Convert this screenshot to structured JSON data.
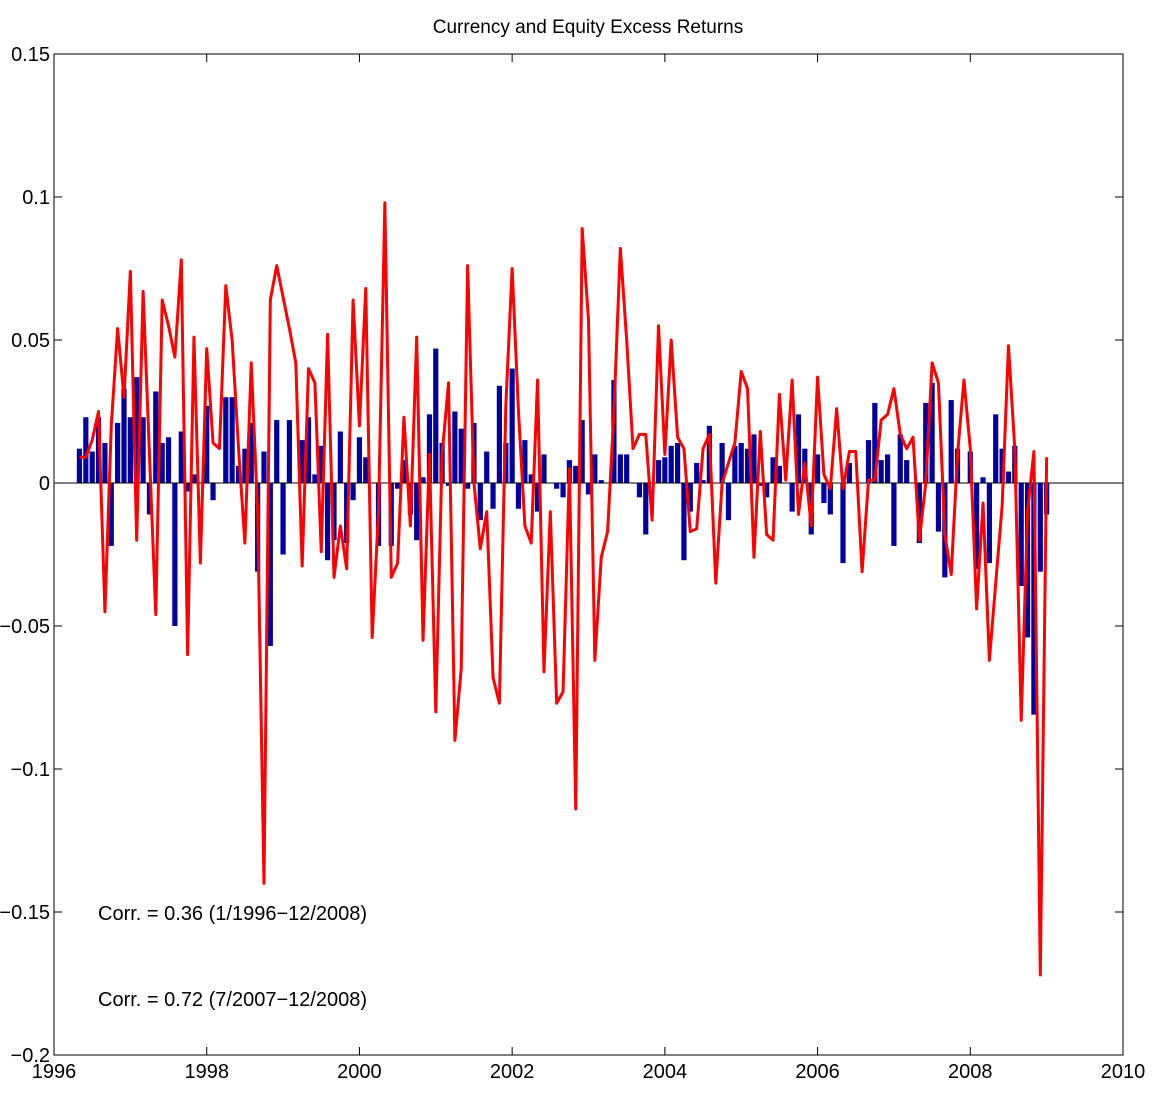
{
  "chart_data": {
    "type": "combo",
    "title": "Currency and Equity Excess Returns",
    "annotations": [
      "Corr. = 0.36 (1/1996−12/2008)",
      "Corr. = 0.72 (7/2007−12/2008)"
    ],
    "xlim": [
      1996,
      2010
    ],
    "xticks": [
      1996,
      1998,
      2000,
      2002,
      2004,
      2006,
      2008,
      2010
    ],
    "ylim": [
      -0.2,
      0.15
    ],
    "yticks": [
      {
        "value": -0.2,
        "label": "−0.2"
      },
      {
        "value": -0.15,
        "label": "−0.15"
      },
      {
        "value": -0.1,
        "label": "−0.1"
      },
      {
        "value": -0.05,
        "label": "−0.05"
      },
      0,
      0.05,
      0.1,
      0.15
    ],
    "x": [
      1996.333,
      1996.417,
      1996.5,
      1996.583,
      1996.667,
      1996.75,
      1996.833,
      1996.917,
      1997,
      1997.083,
      1997.167,
      1997.25,
      1997.333,
      1997.417,
      1997.5,
      1997.583,
      1997.667,
      1997.75,
      1997.833,
      1997.917,
      1998,
      1998.083,
      1998.167,
      1998.25,
      1998.333,
      1998.417,
      1998.5,
      1998.583,
      1998.667,
      1998.75,
      1998.833,
      1998.917,
      1999,
      1999.083,
      1999.167,
      1999.25,
      1999.333,
      1999.417,
      1999.5,
      1999.583,
      1999.667,
      1999.75,
      1999.833,
      1999.917,
      2000,
      2000.083,
      2000.167,
      2000.25,
      2000.333,
      2000.417,
      2000.5,
      2000.583,
      2000.667,
      2000.75,
      2000.833,
      2000.917,
      2001,
      2001.083,
      2001.167,
      2001.25,
      2001.333,
      2001.417,
      2001.5,
      2001.583,
      2001.667,
      2001.75,
      2001.833,
      2001.917,
      2002,
      2002.083,
      2002.167,
      2002.25,
      2002.333,
      2002.417,
      2002.5,
      2002.583,
      2002.667,
      2002.75,
      2002.833,
      2002.917,
      2003,
      2003.083,
      2003.167,
      2003.25,
      2003.333,
      2003.417,
      2003.5,
      2003.583,
      2003.667,
      2003.75,
      2003.833,
      2003.917,
      2004,
      2004.083,
      2004.167,
      2004.25,
      2004.333,
      2004.417,
      2004.5,
      2004.583,
      2004.667,
      2004.75,
      2004.833,
      2004.917,
      2005,
      2005.083,
      2005.167,
      2005.25,
      2005.333,
      2005.417,
      2005.5,
      2005.583,
      2005.667,
      2005.75,
      2005.833,
      2005.917,
      2006,
      2006.083,
      2006.167,
      2006.25,
      2006.333,
      2006.417,
      2006.5,
      2006.583,
      2006.667,
      2006.75,
      2006.833,
      2006.917,
      2007,
      2007.083,
      2007.167,
      2007.25,
      2007.333,
      2007.417,
      2007.5,
      2007.583,
      2007.667,
      2007.75,
      2007.833,
      2007.917,
      2008,
      2008.083,
      2008.167,
      2008.25,
      2008.333,
      2008.417,
      2008.5,
      2008.583,
      2008.667,
      2008.75,
      2008.833,
      2008.917,
      2009
    ],
    "series": [
      {
        "type": "bar",
        "color": "#00009c",
        "values": [
          0.012,
          0.023,
          0.011,
          0.023,
          0.014,
          -0.022,
          0.021,
          0.033,
          0.023,
          0.037,
          0.023,
          -0.011,
          0.032,
          0.014,
          0.016,
          -0.05,
          0.018,
          -0.003,
          0.003,
          0.0,
          0.027,
          -0.006,
          0.0,
          0.03,
          0.03,
          0.006,
          0.012,
          0.021,
          -0.031,
          0.011,
          -0.057,
          0.022,
          -0.025,
          0.022,
          0.0,
          0.015,
          0.023,
          0.003,
          0.013,
          -0.027,
          -0.02,
          0.018,
          -0.021,
          -0.006,
          0.016,
          0.009,
          0.0,
          -0.022,
          0.0,
          -0.022,
          -0.002,
          0.008,
          -0.011,
          -0.02,
          0.002,
          0.024,
          0.047,
          0.014,
          -0.001,
          0.025,
          0.019,
          -0.002,
          0.021,
          -0.013,
          0.011,
          -0.009,
          0.034,
          0.014,
          0.04,
          -0.009,
          0.015,
          0.003,
          -0.01,
          0.01,
          0.0,
          -0.002,
          -0.005,
          0.008,
          0.006,
          0.022,
          -0.004,
          0.01,
          0.001,
          0.0,
          0.036,
          0.01,
          0.01,
          0.0,
          -0.005,
          -0.018,
          0.0,
          0.008,
          0.009,
          0.013,
          0.014,
          -0.027,
          -0.01,
          0.007,
          0.001,
          0.02,
          0.0,
          0.014,
          -0.013,
          0.013,
          0.014,
          0.012,
          0.017,
          -0.001,
          -0.005,
          0.009,
          0.006,
          0.0,
          -0.01,
          0.024,
          0.012,
          -0.018,
          0.01,
          -0.007,
          -0.011,
          0.0,
          -0.028,
          0.007,
          0.0,
          0.0,
          0.015,
          0.028,
          0.008,
          0.01,
          -0.022,
          0.017,
          0.008,
          0.0,
          -0.021,
          0.028,
          0.035,
          -0.017,
          -0.033,
          0.029,
          0.012,
          0.0,
          0.011,
          -0.03,
          0.002,
          -0.028,
          0.024,
          0.012,
          0.004,
          0.013,
          -0.036,
          -0.054,
          -0.081,
          -0.031,
          -0.011
        ]
      },
      {
        "type": "line",
        "color": "#ff0000",
        "values": [
          0.009,
          0.009,
          0.015,
          0.025,
          -0.045,
          0.02,
          0.054,
          0.03,
          0.074,
          -0.02,
          0.067,
          0.01,
          -0.046,
          0.064,
          0.055,
          0.044,
          0.078,
          -0.06,
          0.051,
          -0.028,
          0.047,
          0.014,
          0.012,
          0.069,
          0.05,
          0.012,
          -0.021,
          0.042,
          -0.01,
          -0.14,
          0.064,
          0.076,
          0.065,
          0.054,
          0.042,
          -0.029,
          0.04,
          0.035,
          -0.024,
          0.052,
          -0.033,
          -0.015,
          -0.03,
          0.064,
          0.02,
          0.068,
          -0.054,
          -0.01,
          0.098,
          -0.033,
          -0.028,
          0.023,
          -0.015,
          0.051,
          -0.055,
          0.01,
          -0.08,
          0.01,
          0.035,
          -0.09,
          -0.065,
          0.076,
          0.0,
          -0.023,
          -0.01,
          -0.068,
          -0.077,
          0.027,
          0.075,
          0.025,
          -0.015,
          -0.021,
          0.036,
          -0.066,
          -0.01,
          -0.077,
          -0.073,
          0.005,
          -0.114,
          0.089,
          0.057,
          -0.062,
          -0.026,
          -0.017,
          0.025,
          0.082,
          0.05,
          0.012,
          0.017,
          0.017,
          -0.013,
          0.055,
          0.01,
          0.05,
          0.016,
          0.012,
          -0.017,
          -0.016,
          0.012,
          0.017,
          -0.035,
          0.0,
          0.007,
          0.014,
          0.039,
          0.033,
          -0.026,
          0.018,
          -0.018,
          -0.02,
          0.031,
          0.001,
          0.036,
          -0.011,
          0.007,
          -0.015,
          0.037,
          0.003,
          -0.002,
          0.026,
          -0.002,
          0.011,
          0.011,
          -0.031,
          0.001,
          0.001,
          0.022,
          0.024,
          0.033,
          0.017,
          0.012,
          0.016,
          -0.02,
          0.0,
          0.042,
          0.035,
          -0.018,
          -0.032,
          0.01,
          0.036,
          0.012,
          -0.044,
          -0.007,
          -0.062,
          -0.035,
          -0.008,
          0.048,
          0.012,
          -0.083,
          -0.01,
          0.011,
          -0.172,
          0.009
        ]
      }
    ]
  }
}
